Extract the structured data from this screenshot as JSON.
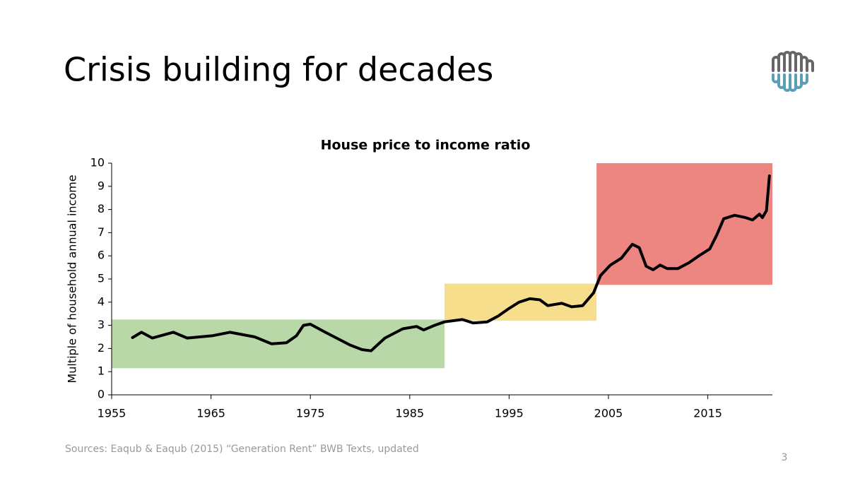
{
  "slide": {
    "title": "Crisis building for decades",
    "source": "Sources: Eaqub & Eaqub (2015) “Generation Rent” BWB Texts, updated",
    "page_number": "3"
  },
  "chart_data": {
    "type": "line",
    "title": "House price to income ratio",
    "y_label": "Multiple of household annual income",
    "x": [
      1957.1,
      1958.0,
      1959.1,
      1961.2,
      1962.6,
      1965.1,
      1966.9,
      1969.4,
      1971.1,
      1972.6,
      1973.6,
      1974.3,
      1975.0,
      1976.5,
      1979.0,
      1980.2,
      1981.1,
      1982.5,
      1984.3,
      1985.7,
      1986.4,
      1987.5,
      1988.5,
      1990.3,
      1991.4,
      1992.8,
      1993.9,
      1994.9,
      1996.0,
      1997.1,
      1998.1,
      1998.9,
      2000.3,
      2001.3,
      2002.4,
      2003.5,
      2004.2,
      2005.2,
      2006.3,
      2007.4,
      2008.1,
      2008.8,
      2009.5,
      2010.2,
      2010.9,
      2012.0,
      2013.1,
      2014.1,
      2015.2,
      2015.9,
      2016.6,
      2017.7,
      2018.8,
      2019.5,
      2020.2,
      2020.5,
      2020.9,
      2021.2
    ],
    "values": [
      2.47,
      2.7,
      2.45,
      2.7,
      2.45,
      2.55,
      2.7,
      2.5,
      2.2,
      2.25,
      2.55,
      3.0,
      3.05,
      2.7,
      2.15,
      1.95,
      1.9,
      2.45,
      2.85,
      2.95,
      2.8,
      3.0,
      3.15,
      3.25,
      3.1,
      3.15,
      3.4,
      3.7,
      4.0,
      4.15,
      4.1,
      3.85,
      3.95,
      3.8,
      3.85,
      4.4,
      5.15,
      5.6,
      5.9,
      6.5,
      6.35,
      5.55,
      5.4,
      5.6,
      5.45,
      5.45,
      5.7,
      6.0,
      6.3,
      6.9,
      7.6,
      7.75,
      7.65,
      7.55,
      7.8,
      7.65,
      7.95,
      9.45
    ],
    "color": "#000000",
    "regions": [
      {
        "x": [
          1955,
          1988.5
        ],
        "y": [
          1.15,
          3.25
        ],
        "color": "#b9d8a8"
      },
      {
        "x": [
          1988.5,
          2003.8
        ],
        "y": [
          3.2,
          4.8
        ],
        "color": "#f7de8c"
      },
      {
        "x": [
          2003.8,
          2021.5
        ],
        "y": [
          4.75,
          10
        ],
        "color": "#ed8580"
      }
    ],
    "xlim": [
      1955,
      2021.5
    ],
    "xticks": [
      1955,
      1965,
      1975,
      1985,
      1995,
      2005,
      2015
    ],
    "ylim": [
      0,
      10
    ],
    "yticks": [
      0,
      1,
      2,
      3,
      4,
      5,
      6,
      7,
      8,
      9,
      10
    ]
  }
}
